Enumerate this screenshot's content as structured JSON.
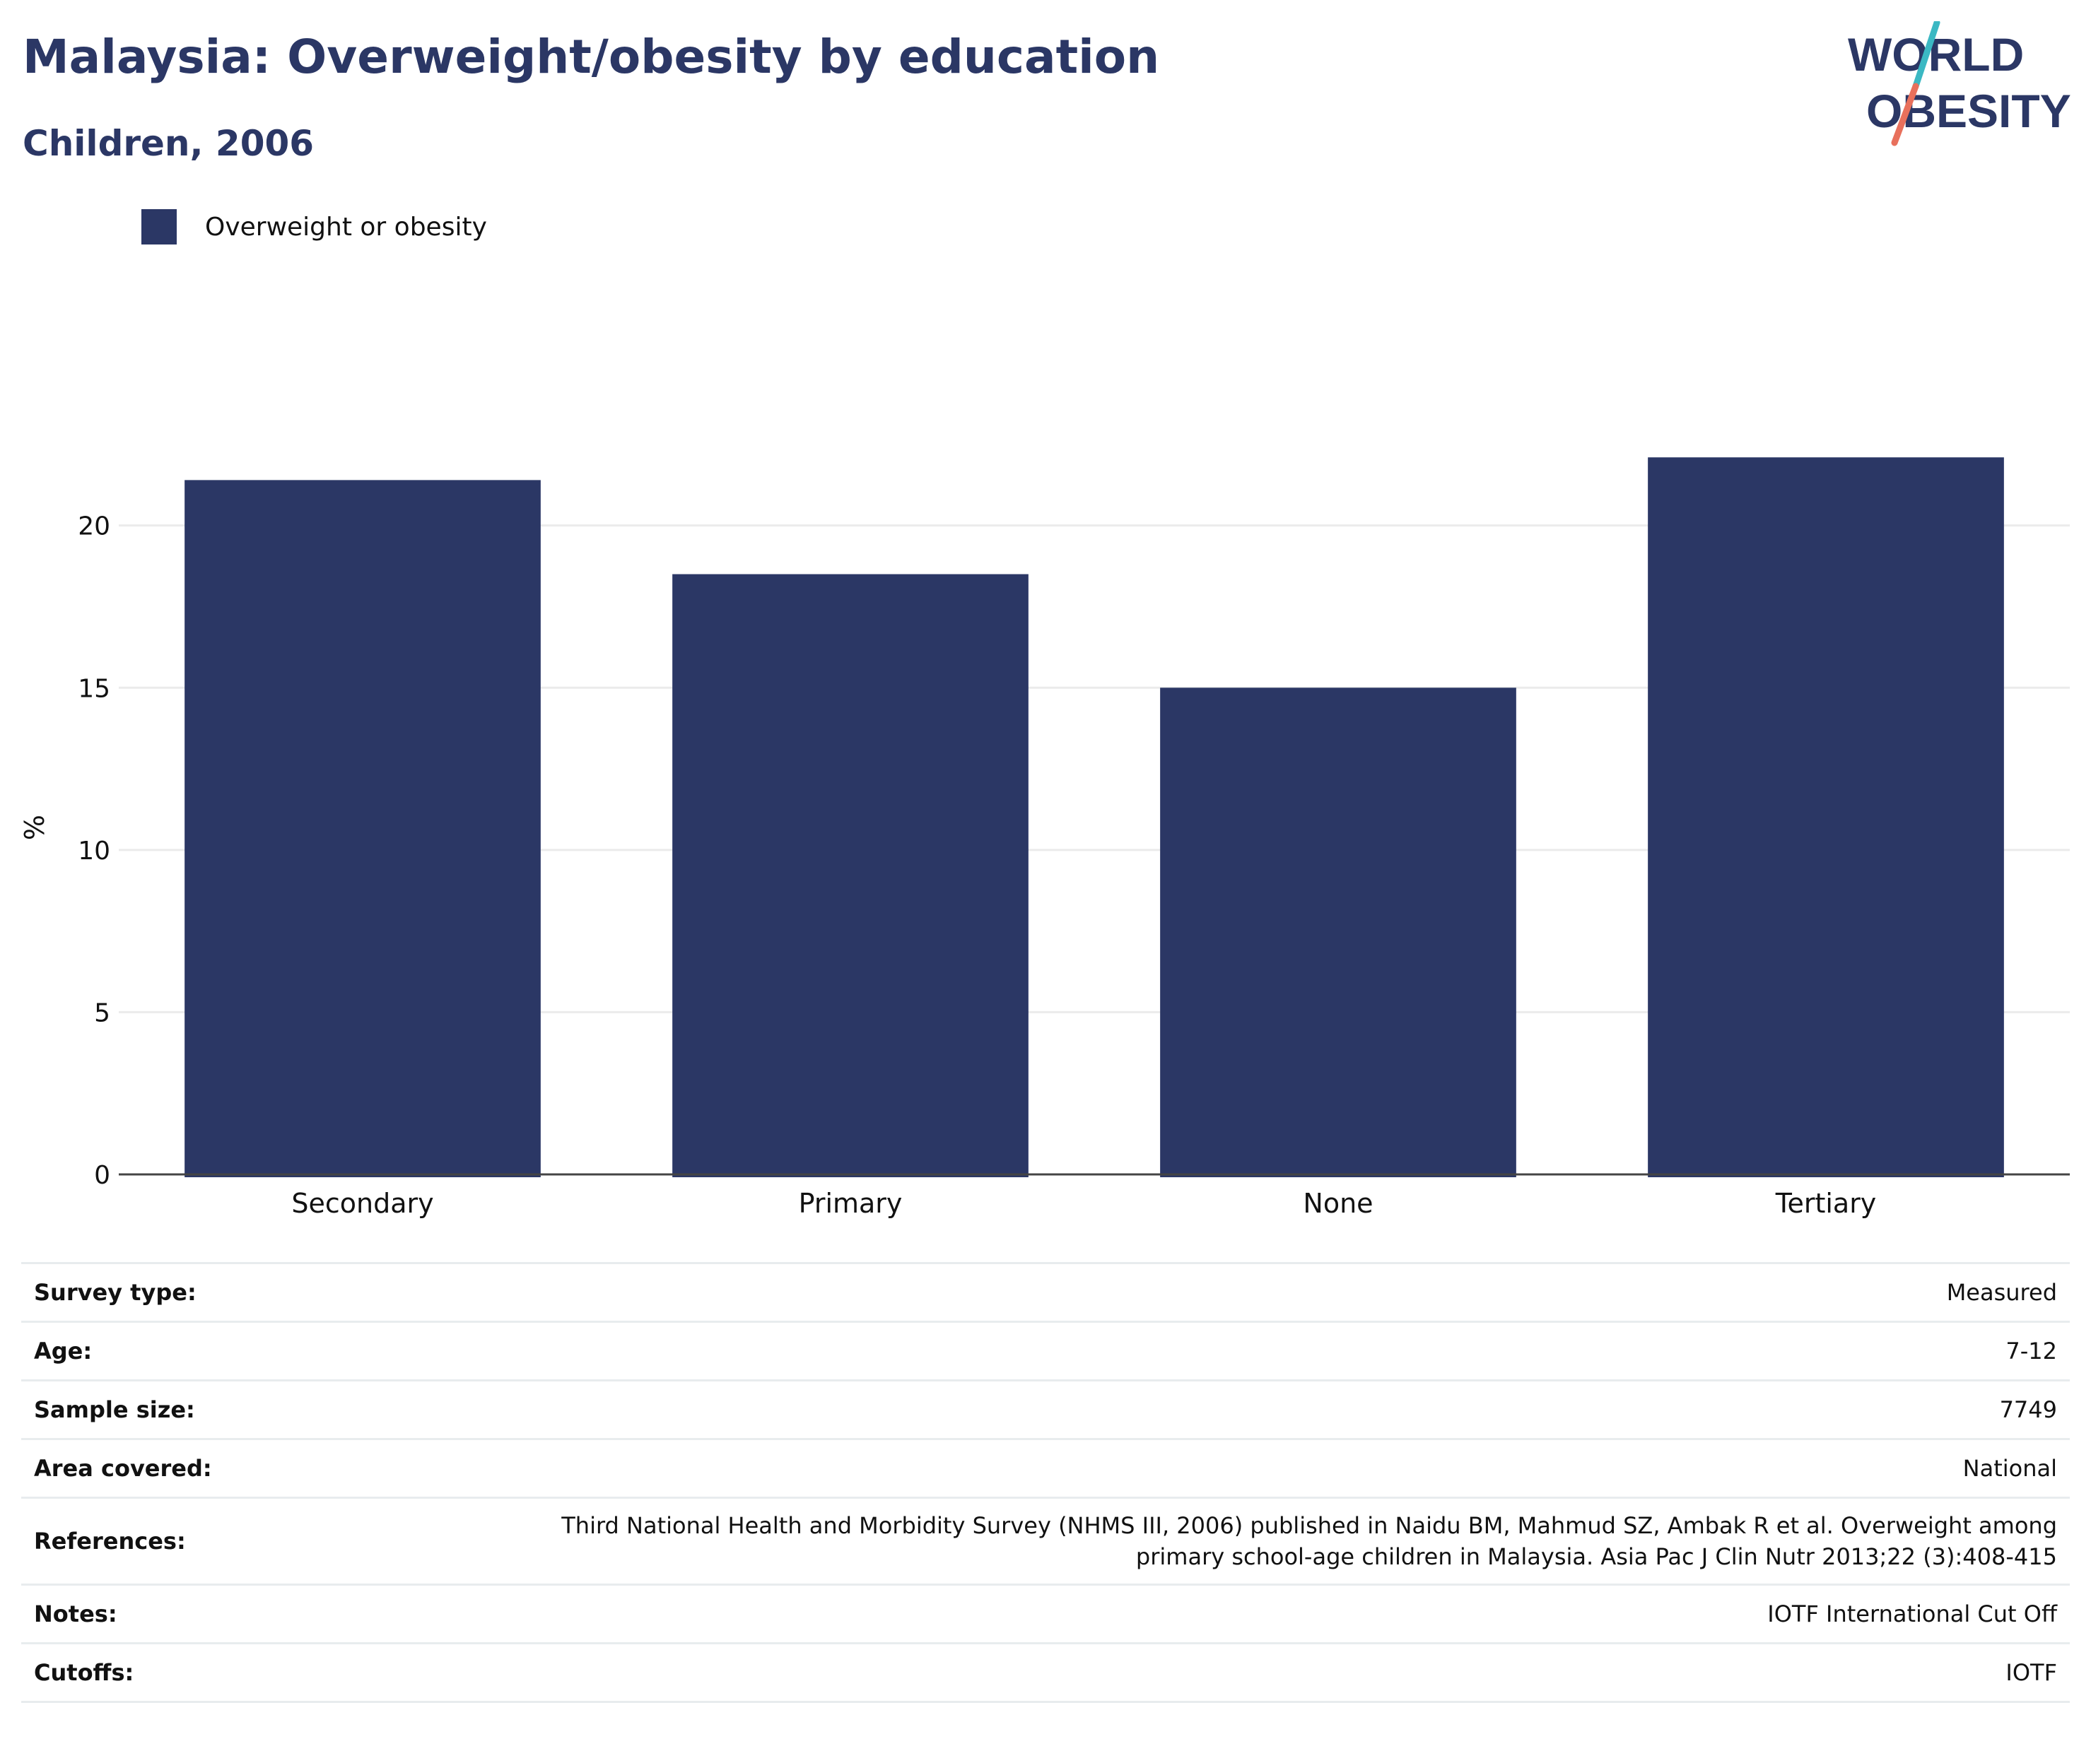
{
  "header": {
    "title": "Malaysia: Overweight/obesity by education",
    "subtitle": "Children, 2006"
  },
  "logo": {
    "line1": "WORLD",
    "line2": "OBESITY",
    "text_color": "#2b3765",
    "accent_teal": "#3bb8c3",
    "accent_coral": "#e8705c"
  },
  "legend": {
    "label": "Overweight or obesity",
    "color": "#2b3765"
  },
  "chart_data": {
    "type": "bar",
    "categories": [
      "Secondary",
      "Primary",
      "None",
      "Tertiary"
    ],
    "series": [
      {
        "name": "Overweight or obesity",
        "values": [
          21.4,
          18.5,
          15.0,
          22.1
        ],
        "color": "#2b3765"
      }
    ],
    "title": "Malaysia: Overweight/obesity by education",
    "subtitle": "Children, 2006",
    "xlabel": "",
    "ylabel": "%",
    "ylim": [
      0,
      24
    ],
    "yticks": [
      0,
      5,
      10,
      15,
      20
    ],
    "grid": true,
    "legend_position": "top-left"
  },
  "info": {
    "rows": [
      {
        "label": "Survey type:",
        "value": "Measured"
      },
      {
        "label": "Age:",
        "value": "7-12"
      },
      {
        "label": "Sample size:",
        "value": "7749"
      },
      {
        "label": "Area covered:",
        "value": "National"
      },
      {
        "label": "References:",
        "value_line1": "Third National Health and Morbidity Survey (NHMS III, 2006) published in Naidu BM, Mahmud SZ, Ambak R et al. Overweight among",
        "value_line2": "primary school-age children in Malaysia. Asia Pac J Clin Nutr 2013;22 (3):408-415"
      },
      {
        "label": "Notes:",
        "value": "IOTF International Cut Off"
      },
      {
        "label": "Cutoffs:",
        "value": "IOTF"
      }
    ]
  }
}
